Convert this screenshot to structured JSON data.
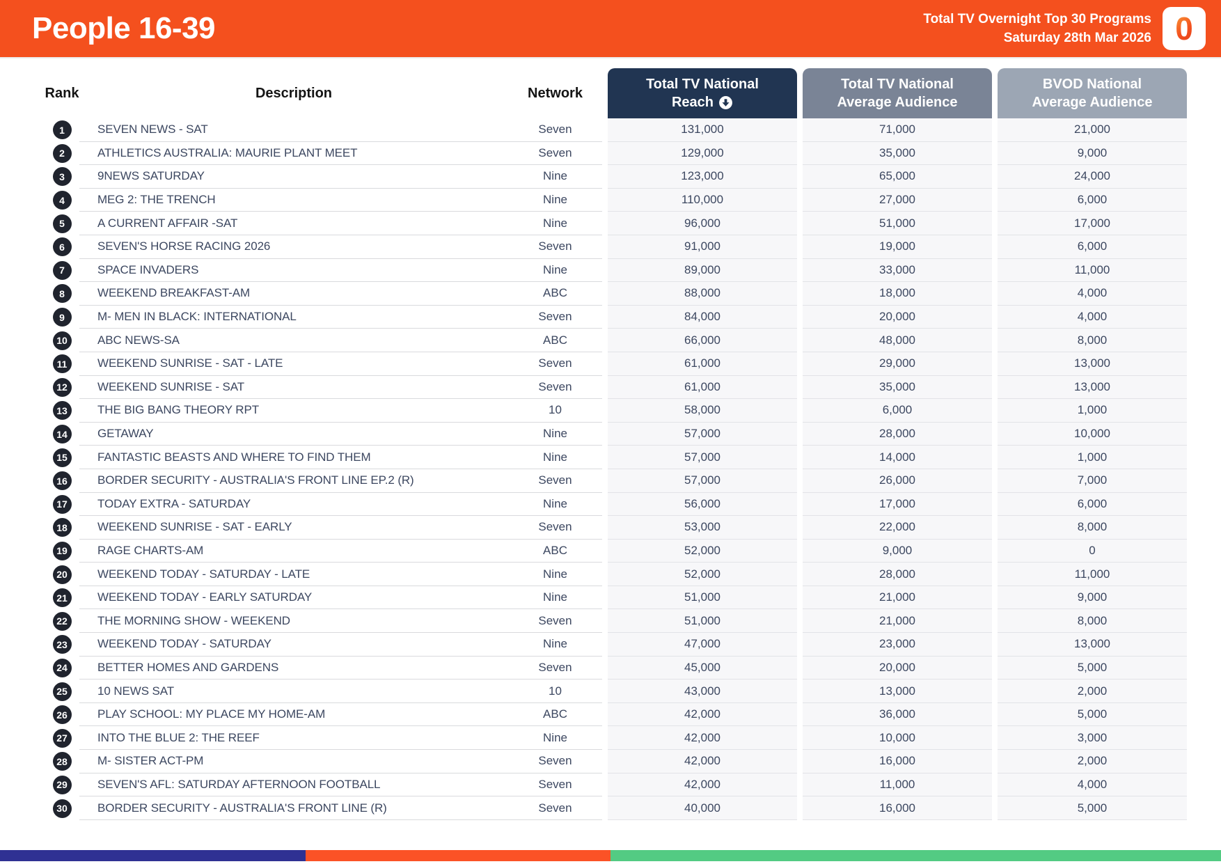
{
  "header": {
    "title": "People 16-39",
    "subtitle_line1": "Total TV Overnight Top 30 Programs",
    "subtitle_line2": "Saturday 28th Mar 2026",
    "logo_glyph": "0"
  },
  "table": {
    "columns": {
      "rank": "Rank",
      "description": "Description",
      "network": "Network",
      "reach_line1": "Total TV National",
      "reach_line2": "Reach",
      "avg_line1": "Total TV National",
      "avg_line2": "Average Audience",
      "bvod_line1": "BVOD National",
      "bvod_line2": "Average Audience"
    },
    "sort_icon": "circled-down-arrow",
    "rows": [
      {
        "rank": "1",
        "description": "SEVEN NEWS - SAT",
        "network": "Seven",
        "reach": "131,000",
        "avg_audience": "71,000",
        "bvod_audience": "21,000"
      },
      {
        "rank": "2",
        "description": "ATHLETICS AUSTRALIA: MAURIE PLANT MEET",
        "network": "Seven",
        "reach": "129,000",
        "avg_audience": "35,000",
        "bvod_audience": "9,000"
      },
      {
        "rank": "3",
        "description": "9NEWS SATURDAY",
        "network": "Nine",
        "reach": "123,000",
        "avg_audience": "65,000",
        "bvod_audience": "24,000"
      },
      {
        "rank": "4",
        "description": "MEG 2: THE TRENCH",
        "network": "Nine",
        "reach": "110,000",
        "avg_audience": "27,000",
        "bvod_audience": "6,000"
      },
      {
        "rank": "5",
        "description": "A CURRENT AFFAIR -SAT",
        "network": "Nine",
        "reach": "96,000",
        "avg_audience": "51,000",
        "bvod_audience": "17,000"
      },
      {
        "rank": "6",
        "description": "SEVEN'S HORSE RACING 2026",
        "network": "Seven",
        "reach": "91,000",
        "avg_audience": "19,000",
        "bvod_audience": "6,000"
      },
      {
        "rank": "7",
        "description": "SPACE INVADERS",
        "network": "Nine",
        "reach": "89,000",
        "avg_audience": "33,000",
        "bvod_audience": "11,000"
      },
      {
        "rank": "8",
        "description": "WEEKEND BREAKFAST-AM",
        "network": "ABC",
        "reach": "88,000",
        "avg_audience": "18,000",
        "bvod_audience": "4,000"
      },
      {
        "rank": "9",
        "description": "M- MEN IN BLACK: INTERNATIONAL",
        "network": "Seven",
        "reach": "84,000",
        "avg_audience": "20,000",
        "bvod_audience": "4,000"
      },
      {
        "rank": "10",
        "description": "ABC NEWS-SA",
        "network": "ABC",
        "reach": "66,000",
        "avg_audience": "48,000",
        "bvod_audience": "8,000"
      },
      {
        "rank": "11",
        "description": "WEEKEND SUNRISE - SAT - LATE",
        "network": "Seven",
        "reach": "61,000",
        "avg_audience": "29,000",
        "bvod_audience": "13,000"
      },
      {
        "rank": "12",
        "description": "WEEKEND SUNRISE - SAT",
        "network": "Seven",
        "reach": "61,000",
        "avg_audience": "35,000",
        "bvod_audience": "13,000"
      },
      {
        "rank": "13",
        "description": "THE BIG BANG THEORY RPT",
        "network": "10",
        "reach": "58,000",
        "avg_audience": "6,000",
        "bvod_audience": "1,000"
      },
      {
        "rank": "14",
        "description": "GETAWAY",
        "network": "Nine",
        "reach": "57,000",
        "avg_audience": "28,000",
        "bvod_audience": "10,000"
      },
      {
        "rank": "15",
        "description": "FANTASTIC BEASTS AND WHERE TO FIND THEM",
        "network": "Nine",
        "reach": "57,000",
        "avg_audience": "14,000",
        "bvod_audience": "1,000"
      },
      {
        "rank": "16",
        "description": "BORDER SECURITY - AUSTRALIA'S FRONT LINE EP.2 (R)",
        "network": "Seven",
        "reach": "57,000",
        "avg_audience": "26,000",
        "bvod_audience": "7,000"
      },
      {
        "rank": "17",
        "description": "TODAY EXTRA - SATURDAY",
        "network": "Nine",
        "reach": "56,000",
        "avg_audience": "17,000",
        "bvod_audience": "6,000"
      },
      {
        "rank": "18",
        "description": "WEEKEND SUNRISE - SAT - EARLY",
        "network": "Seven",
        "reach": "53,000",
        "avg_audience": "22,000",
        "bvod_audience": "8,000"
      },
      {
        "rank": "19",
        "description": "RAGE CHARTS-AM",
        "network": "ABC",
        "reach": "52,000",
        "avg_audience": "9,000",
        "bvod_audience": "0"
      },
      {
        "rank": "20",
        "description": "WEEKEND TODAY - SATURDAY - LATE",
        "network": "Nine",
        "reach": "52,000",
        "avg_audience": "28,000",
        "bvod_audience": "11,000"
      },
      {
        "rank": "21",
        "description": "WEEKEND TODAY - EARLY SATURDAY",
        "network": "Nine",
        "reach": "51,000",
        "avg_audience": "21,000",
        "bvod_audience": "9,000"
      },
      {
        "rank": "22",
        "description": "THE MORNING SHOW - WEEKEND",
        "network": "Seven",
        "reach": "51,000",
        "avg_audience": "21,000",
        "bvod_audience": "8,000"
      },
      {
        "rank": "23",
        "description": "WEEKEND TODAY - SATURDAY",
        "network": "Nine",
        "reach": "47,000",
        "avg_audience": "23,000",
        "bvod_audience": "13,000"
      },
      {
        "rank": "24",
        "description": "BETTER HOMES AND GARDENS",
        "network": "Seven",
        "reach": "45,000",
        "avg_audience": "20,000",
        "bvod_audience": "5,000"
      },
      {
        "rank": "25",
        "description": "10 NEWS SAT",
        "network": "10",
        "reach": "43,000",
        "avg_audience": "13,000",
        "bvod_audience": "2,000"
      },
      {
        "rank": "26",
        "description": "PLAY SCHOOL: MY PLACE MY HOME-AM",
        "network": "ABC",
        "reach": "42,000",
        "avg_audience": "36,000",
        "bvod_audience": "5,000"
      },
      {
        "rank": "27",
        "description": "INTO THE BLUE 2: THE REEF",
        "network": "Nine",
        "reach": "42,000",
        "avg_audience": "10,000",
        "bvod_audience": "3,000"
      },
      {
        "rank": "28",
        "description": "M- SISTER ACT-PM",
        "network": "Seven",
        "reach": "42,000",
        "avg_audience": "16,000",
        "bvod_audience": "2,000"
      },
      {
        "rank": "29",
        "description": "SEVEN'S AFL: SATURDAY AFTERNOON FOOTBALL",
        "network": "Seven",
        "reach": "42,000",
        "avg_audience": "11,000",
        "bvod_audience": "4,000"
      },
      {
        "rank": "30",
        "description": "BORDER SECURITY - AUSTRALIA'S FRONT LINE (R)",
        "network": "Seven",
        "reach": "40,000",
        "avg_audience": "16,000",
        "bvod_audience": "5,000"
      }
    ]
  },
  "colors": {
    "banner_orange": "#F4501E",
    "reach_header": "#213552",
    "avg_header": "#7A8496",
    "bvod_header": "#9CA6B4",
    "rank_badge": "#20242E",
    "body_text": "#3C4760"
  },
  "footer": {
    "segments": [
      {
        "name": "navy",
        "color": "#2F3193",
        "width_pct": 25
      },
      {
        "name": "orange",
        "color": "#FB5226",
        "width_pct": 25
      },
      {
        "name": "green",
        "color": "#53CB83",
        "width_pct": 50
      }
    ]
  }
}
